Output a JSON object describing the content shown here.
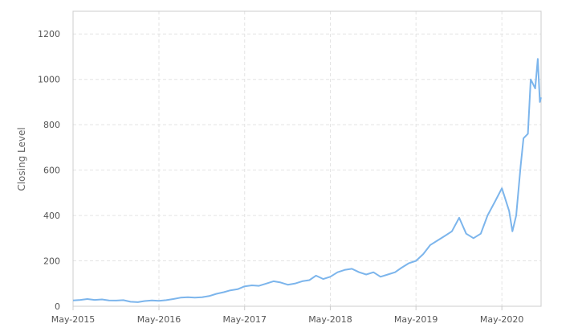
{
  "chart_data": {
    "type": "line",
    "title": "",
    "xlabel": "",
    "ylabel": "Closing Level",
    "ylim": [
      0,
      1300
    ],
    "y_ticks": [
      0,
      200,
      400,
      600,
      800,
      1000,
      1200
    ],
    "y_tick_labels": [
      "0",
      "200",
      "400",
      "600",
      "800",
      "1000",
      "1200"
    ],
    "x_ticks": [
      "2015-05-01",
      "2016-05-01",
      "2017-05-01",
      "2018-05-01",
      "2019-05-01",
      "2020-05-01"
    ],
    "x_tick_labels": [
      "May-2015",
      "May-2016",
      "May-2017",
      "May-2018",
      "May-2019",
      "May-2020"
    ],
    "xlim": [
      "2015-05-01",
      "2020-10-15"
    ],
    "grid": true,
    "line_color": "#7cb5ec",
    "series": [
      {
        "points": [
          [
            "2015-05-01",
            26
          ],
          [
            "2015-06-01",
            28
          ],
          [
            "2015-07-01",
            32
          ],
          [
            "2015-08-01",
            28
          ],
          [
            "2015-09-01",
            30
          ],
          [
            "2015-10-01",
            26
          ],
          [
            "2015-11-01",
            25
          ],
          [
            "2015-12-01",
            27
          ],
          [
            "2016-01-01",
            20
          ],
          [
            "2016-02-01",
            18
          ],
          [
            "2016-03-01",
            23
          ],
          [
            "2016-04-01",
            26
          ],
          [
            "2016-05-01",
            24
          ],
          [
            "2016-06-01",
            27
          ],
          [
            "2016-07-01",
            32
          ],
          [
            "2016-08-01",
            38
          ],
          [
            "2016-09-01",
            40
          ],
          [
            "2016-10-01",
            38
          ],
          [
            "2016-11-01",
            40
          ],
          [
            "2016-12-01",
            45
          ],
          [
            "2017-01-01",
            55
          ],
          [
            "2017-02-01",
            62
          ],
          [
            "2017-03-01",
            70
          ],
          [
            "2017-04-01",
            75
          ],
          [
            "2017-05-01",
            88
          ],
          [
            "2017-06-01",
            92
          ],
          [
            "2017-07-01",
            90
          ],
          [
            "2017-08-01",
            100
          ],
          [
            "2017-09-01",
            110
          ],
          [
            "2017-10-01",
            105
          ],
          [
            "2017-11-01",
            95
          ],
          [
            "2017-12-01",
            100
          ],
          [
            "2018-01-01",
            110
          ],
          [
            "2018-02-01",
            115
          ],
          [
            "2018-03-01",
            135
          ],
          [
            "2018-04-01",
            120
          ],
          [
            "2018-05-01",
            130
          ],
          [
            "2018-06-01",
            150
          ],
          [
            "2018-07-01",
            160
          ],
          [
            "2018-08-01",
            165
          ],
          [
            "2018-09-01",
            150
          ],
          [
            "2018-10-01",
            140
          ],
          [
            "2018-11-01",
            150
          ],
          [
            "2018-12-01",
            130
          ],
          [
            "2019-01-01",
            140
          ],
          [
            "2019-02-01",
            150
          ],
          [
            "2019-03-01",
            170
          ],
          [
            "2019-04-01",
            190
          ],
          [
            "2019-05-01",
            200
          ],
          [
            "2019-06-01",
            230
          ],
          [
            "2019-07-01",
            270
          ],
          [
            "2019-08-01",
            290
          ],
          [
            "2019-09-01",
            310
          ],
          [
            "2019-10-01",
            330
          ],
          [
            "2019-11-01",
            390
          ],
          [
            "2019-12-01",
            320
          ],
          [
            "2020-01-01",
            300
          ],
          [
            "2020-02-01",
            320
          ],
          [
            "2020-03-01",
            400
          ],
          [
            "2020-04-01",
            460
          ],
          [
            "2020-05-01",
            520
          ],
          [
            "2020-06-01",
            420
          ],
          [
            "2020-06-15",
            330
          ],
          [
            "2020-07-01",
            400
          ],
          [
            "2020-07-20",
            620
          ],
          [
            "2020-08-01",
            740
          ],
          [
            "2020-08-20",
            760
          ],
          [
            "2020-09-01",
            1000
          ],
          [
            "2020-09-20",
            960
          ],
          [
            "2020-10-01",
            1090
          ],
          [
            "2020-10-10",
            900
          ],
          [
            "2020-10-15",
            920
          ]
        ]
      }
    ]
  }
}
